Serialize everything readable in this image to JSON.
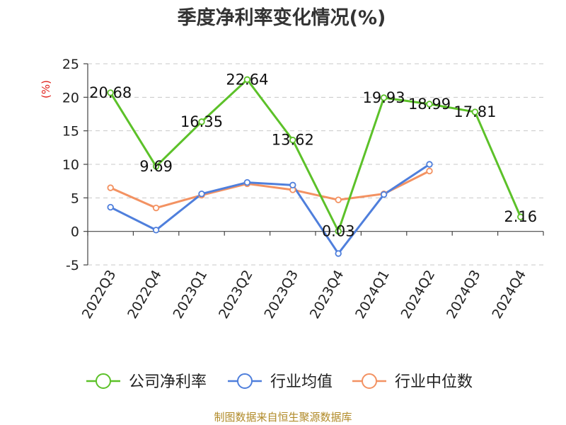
{
  "chart_data": {
    "type": "line",
    "title": "季度净利率变化情况(%)",
    "ylabel": "(%)",
    "categories": [
      "2022Q3",
      "2022Q4",
      "2023Q1",
      "2023Q2",
      "2023Q3",
      "2023Q4",
      "2024Q1",
      "2024Q2",
      "2024Q3",
      "2024Q4"
    ],
    "ylim": [
      -5,
      25
    ],
    "yticks": [
      -5,
      0,
      5,
      10,
      15,
      20,
      25
    ],
    "grid": true,
    "legend_position": "bottom",
    "series": [
      {
        "name": "公司净利率",
        "color": "#5cc129",
        "values": [
          20.68,
          9.69,
          16.35,
          22.64,
          13.62,
          0.03,
          19.93,
          18.99,
          17.81,
          2.16
        ],
        "labels": [
          "20.68",
          "9.69",
          "16.35",
          "22.64",
          "13.62",
          "0.03",
          "19.93",
          "18.99",
          "17.81",
          "2.16"
        ]
      },
      {
        "name": "行业均值",
        "color": "#4f7fdc",
        "values": [
          3.6,
          0.2,
          5.6,
          7.3,
          6.9,
          -3.3,
          5.5,
          10.0,
          null,
          null
        ]
      },
      {
        "name": "行业中位数",
        "color": "#f39262",
        "values": [
          6.5,
          3.5,
          5.4,
          7.1,
          6.2,
          4.7,
          5.6,
          9.0,
          null,
          null
        ]
      }
    ]
  },
  "footer": {
    "source": "制图数据来自恒生聚源数据库"
  }
}
